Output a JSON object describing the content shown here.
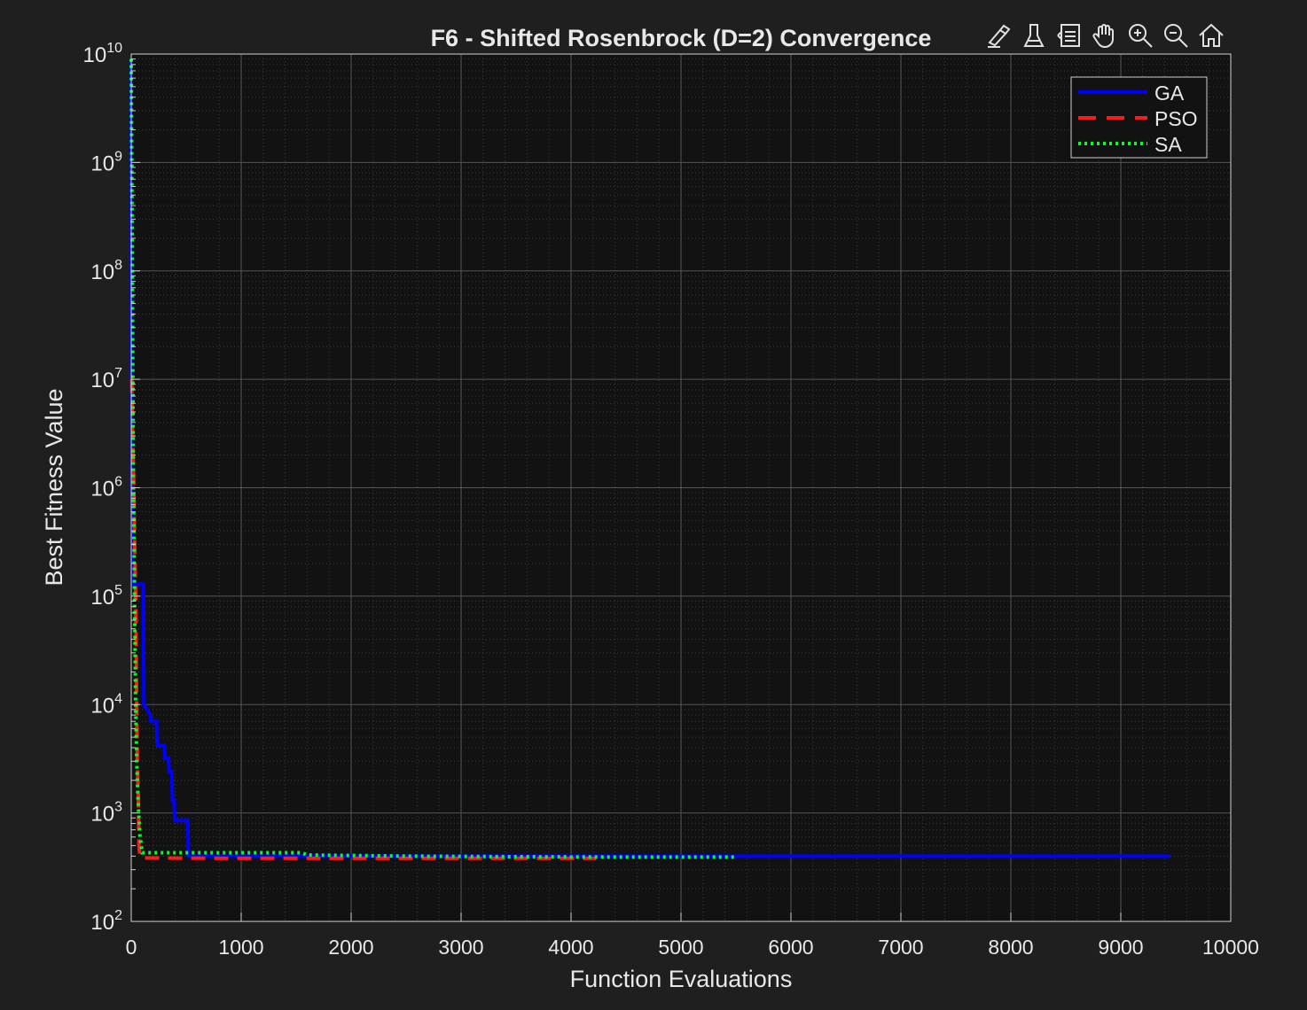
{
  "chart_data": {
    "type": "line",
    "title": "F6 - Shifted Rosenbrock (D=2) Convergence",
    "xlabel": "Function Evaluations",
    "ylabel": "Best Fitness Value",
    "xlim": [
      0,
      10000
    ],
    "ylim": [
      100,
      10000000000
    ],
    "yscale": "log",
    "grid": true,
    "minor_grid": true,
    "legend_position": "top-right",
    "x_ticks": [
      "0",
      "1000",
      "2000",
      "3000",
      "4000",
      "5000",
      "6000",
      "7000",
      "8000",
      "9000",
      "10000"
    ],
    "y_ticks": [
      {
        "base": "10",
        "exp": "2"
      },
      {
        "base": "10",
        "exp": "3"
      },
      {
        "base": "10",
        "exp": "4"
      },
      {
        "base": "10",
        "exp": "5"
      },
      {
        "base": "10",
        "exp": "6"
      },
      {
        "base": "10",
        "exp": "7"
      },
      {
        "base": "10",
        "exp": "8"
      },
      {
        "base": "10",
        "exp": "9"
      },
      {
        "base": "10",
        "exp": "10"
      }
    ],
    "series": [
      {
        "name": "GA",
        "color": "#0000ff",
        "style": "solid",
        "x": [
          0,
          5,
          10,
          20,
          25,
          110,
          115,
          175,
          180,
          230,
          235,
          300,
          305,
          340,
          345,
          370,
          375,
          390,
          395,
          515,
          520,
          9450
        ],
        "y": [
          9000000000,
          1000000,
          500000,
          130000,
          130000,
          130000,
          10000,
          8000,
          7000,
          7000,
          4200,
          4200,
          3200,
          3200,
          2400,
          2400,
          1300,
          1300,
          850,
          850,
          400,
          400
        ]
      },
      {
        "name": "PSO",
        "color": "#ff1a1a",
        "style": "dashed",
        "x": [
          0,
          5,
          10,
          20,
          30,
          40,
          50,
          55,
          60,
          65,
          70,
          80,
          100,
          500,
          1000,
          2000,
          3000,
          4230
        ],
        "y": [
          10000000,
          10000000,
          4000000,
          1500000,
          400000,
          100000,
          10000,
          3000,
          2000,
          1500,
          500,
          390,
          385,
          383,
          382,
          382,
          382,
          382
        ]
      },
      {
        "name": "SA",
        "color": "#00ff2a",
        "style": "dotted",
        "x": [
          0,
          5,
          10,
          15,
          20,
          30,
          40,
          50,
          60,
          70,
          80,
          90,
          100,
          1550,
          1600,
          2500,
          3500,
          4500,
          5510
        ],
        "y": [
          9000000000,
          1000000000,
          100000000,
          10000000,
          1000000,
          100000,
          10000,
          3000,
          1500,
          900,
          600,
          520,
          430,
          430,
          410,
          400,
          395,
          392,
          392
        ]
      }
    ],
    "legend": [
      "GA",
      "PSO",
      "SA"
    ]
  },
  "toolbar": {
    "icons": [
      "brush-icon",
      "data-tips-icon",
      "restore-view-icon",
      "pan-hand-icon",
      "zoom-in-icon",
      "zoom-out-icon",
      "home-icon"
    ]
  },
  "colors": {
    "figure_bg": "#1f1f1f",
    "axes_bg": "#121212",
    "grid": "#4a4a4a",
    "axis_text": "#e8e8e8"
  }
}
